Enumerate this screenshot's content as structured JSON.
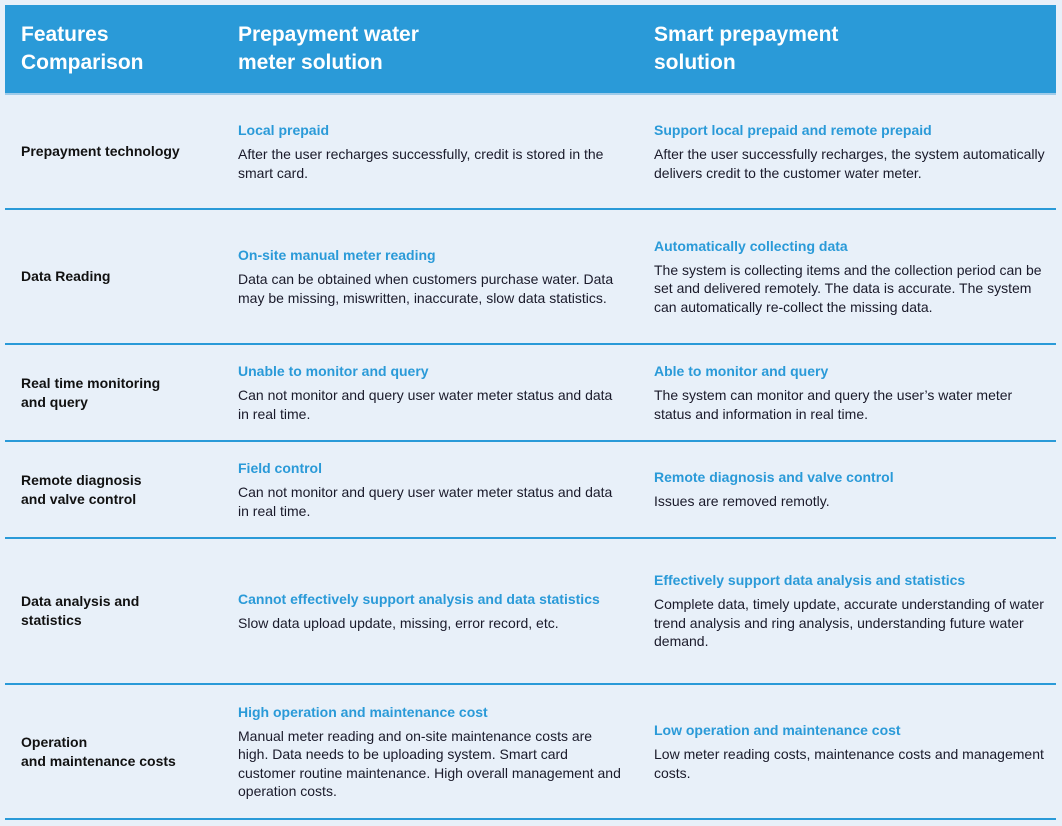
{
  "header": {
    "col1": "Features Comparison",
    "col1_lines": [
      "Features",
      "Comparison"
    ],
    "col2_lines": [
      "Prepayment water",
      "meter solution"
    ],
    "col3_lines": [
      "Smart prepayment",
      "solution"
    ]
  },
  "rows": [
    {
      "feature_lines": [
        "Prepayment technology"
      ],
      "prepay": {
        "title": "Local prepaid",
        "text": "After the user recharges successfully, credit is stored in the smart card."
      },
      "smart": {
        "title": "Support local prepaid and remote prepaid",
        "text": "After the user successfully recharges, the system automatically delivers credit to the customer water meter."
      }
    },
    {
      "feature_lines": [
        "Data Reading"
      ],
      "prepay": {
        "title": "On-site manual meter reading",
        "text": "Data can be obtained when customers purchase water. Data may be missing, miswritten, inaccurate, slow data statistics."
      },
      "smart": {
        "title": "Automatically collecting data",
        "text": "The system is collecting items and the collection period can be set and delivered remotely. The data is accurate. The system can automatically re-collect the missing data."
      }
    },
    {
      "feature_lines": [
        "Real time monitoring",
        "and query"
      ],
      "prepay": {
        "title": "Unable to monitor and query",
        "text": "Can not monitor and query user water meter status and data in real time."
      },
      "smart": {
        "title": "Able to monitor and query",
        "text": "The system can monitor and query the user’s water meter status and information in real time."
      }
    },
    {
      "feature_lines": [
        "Remote diagnosis",
        "and valve control"
      ],
      "prepay": {
        "title": "Field control",
        "text": "Can not monitor and query user water meter status and data in real time."
      },
      "smart": {
        "title": "Remote diagnosis and valve control",
        "text": "Issues are removed remotly."
      }
    },
    {
      "feature_lines": [
        "Data analysis and",
        "statistics"
      ],
      "prepay": {
        "title": "Cannot effectively support analysis and data statistics",
        "text": "Slow data upload update, missing, error record, etc."
      },
      "smart": {
        "title": "Effectively support data analysis and statistics",
        "text": "Complete data, timely update, accurate understanding of water trend analysis and ring analysis, understanding future water demand."
      }
    },
    {
      "feature_lines": [
        "Operation",
        "and maintenance costs"
      ],
      "prepay": {
        "title": "High operation and maintenance cost",
        "text": "Manual meter reading and on-site maintenance costs are high. Data needs to be uploading system. Smart card customer routine maintenance.  High overall management and operation costs."
      },
      "smart": {
        "title": "Low operation and maintenance cost",
        "text": "Low meter reading costs, maintenance costs and management costs."
      }
    }
  ],
  "colors": {
    "header_bg": "#2a9ad8",
    "accent": "#2a9ad8",
    "page_bg": "#e8f0f9"
  }
}
